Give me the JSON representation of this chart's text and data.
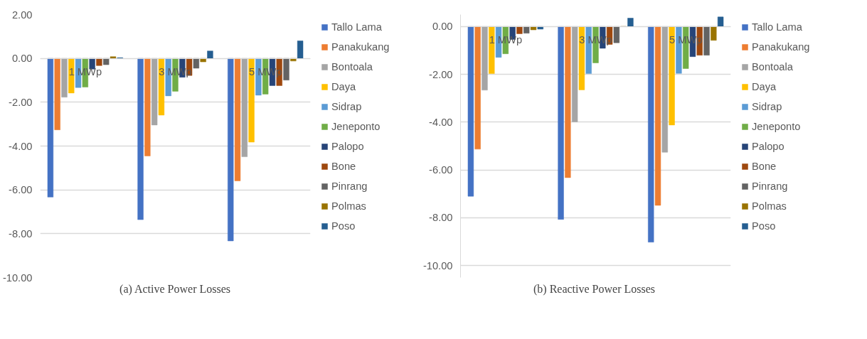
{
  "chart_data": [
    {
      "type": "bar",
      "title": "(a) Active Power Losses",
      "categories": [
        "1 MWp",
        "3 MWp",
        "5 MWp"
      ],
      "series": [
        {
          "name": "Tallo Lama",
          "color": "#4472c4",
          "values": [
            -6.33,
            -7.36,
            -8.33
          ]
        },
        {
          "name": "Panakukang",
          "color": "#ed7d31",
          "values": [
            -3.26,
            -4.45,
            -5.59
          ]
        },
        {
          "name": "Bontoala",
          "color": "#a5a5a5",
          "values": [
            -1.77,
            -3.04,
            -4.49
          ]
        },
        {
          "name": "Daya",
          "color": "#ffc000",
          "values": [
            -1.58,
            -2.59,
            -3.82
          ]
        },
        {
          "name": "Sidrap",
          "color": "#5b9bd5",
          "values": [
            -1.33,
            -1.71,
            -1.68
          ]
        },
        {
          "name": "Jeneponto",
          "color": "#70ad47",
          "values": [
            -1.31,
            -1.5,
            -1.63
          ]
        },
        {
          "name": "Palopo",
          "color": "#264478",
          "values": [
            -0.49,
            -0.86,
            -1.24
          ]
        },
        {
          "name": "Bone",
          "color": "#9e480e",
          "values": [
            -0.33,
            -0.78,
            -1.24
          ]
        },
        {
          "name": "Pinrang",
          "color": "#636363",
          "values": [
            -0.29,
            -0.45,
            -0.99
          ]
        },
        {
          "name": "Polmas",
          "color": "#997300",
          "values": [
            0.08,
            -0.16,
            -0.12
          ]
        },
        {
          "name": "Poso",
          "color": "#255e91",
          "values": [
            0.03,
            0.34,
            0.8
          ]
        }
      ],
      "ylim": [
        -10,
        2
      ],
      "yticks": [
        {
          "value": 2,
          "label": "2.00"
        },
        {
          "value": 0,
          "label": "0.00"
        },
        {
          "value": -2,
          "label": "-2.00"
        },
        {
          "value": -4,
          "label": "-4.00"
        },
        {
          "value": -6,
          "label": "-6.00"
        },
        {
          "value": -8,
          "label": "-8.00"
        },
        {
          "value": -10,
          "label": "-10.00"
        }
      ],
      "grid": "y",
      "legend": "right"
    },
    {
      "type": "bar",
      "title": "(b)  Reactive Power Losses",
      "categories": [
        "1 MWp",
        "3 MWp",
        "5 MWp"
      ],
      "series": [
        {
          "name": "Tallo Lama",
          "color": "#4472c4",
          "values": [
            -7.1,
            -8.07,
            -9.02
          ]
        },
        {
          "name": "Panakukang",
          "color": "#ed7d31",
          "values": [
            -5.13,
            -6.32,
            -7.48
          ]
        },
        {
          "name": "Bontoala",
          "color": "#a5a5a5",
          "values": [
            -2.66,
            -3.99,
            -5.26
          ]
        },
        {
          "name": "Daya",
          "color": "#ffc000",
          "values": [
            -1.97,
            -2.65,
            -4.12
          ]
        },
        {
          "name": "Sidrap",
          "color": "#5b9bd5",
          "values": [
            -1.29,
            -1.97,
            -1.96
          ]
        },
        {
          "name": "Jeneponto",
          "color": "#70ad47",
          "values": [
            -1.14,
            -1.52,
            -1.76
          ]
        },
        {
          "name": "Palopo",
          "color": "#264478",
          "values": [
            -0.54,
            -0.91,
            -1.26
          ]
        },
        {
          "name": "Bone",
          "color": "#9e480e",
          "values": [
            -0.3,
            -0.75,
            -1.2
          ]
        },
        {
          "name": "Pinrang",
          "color": "#636363",
          "values": [
            -0.28,
            -0.68,
            -1.2
          ]
        },
        {
          "name": "Polmas",
          "color": "#997300",
          "values": [
            -0.14,
            0,
            -0.58
          ]
        },
        {
          "name": "Poso",
          "color": "#255e91",
          "values": [
            -0.11,
            0.35,
            0.4
          ]
        }
      ],
      "ylim": [
        -10.5,
        0.5
      ],
      "yticks": [
        {
          "value": 0,
          "label": "0.00"
        },
        {
          "value": -2,
          "label": "-2.00"
        },
        {
          "value": -4,
          "label": "-4.00"
        },
        {
          "value": -6,
          "label": "-6.00"
        },
        {
          "value": -8,
          "label": "-8.00"
        },
        {
          "value": -10,
          "label": "-10.00"
        }
      ],
      "grid": "y",
      "legend": "right"
    }
  ]
}
